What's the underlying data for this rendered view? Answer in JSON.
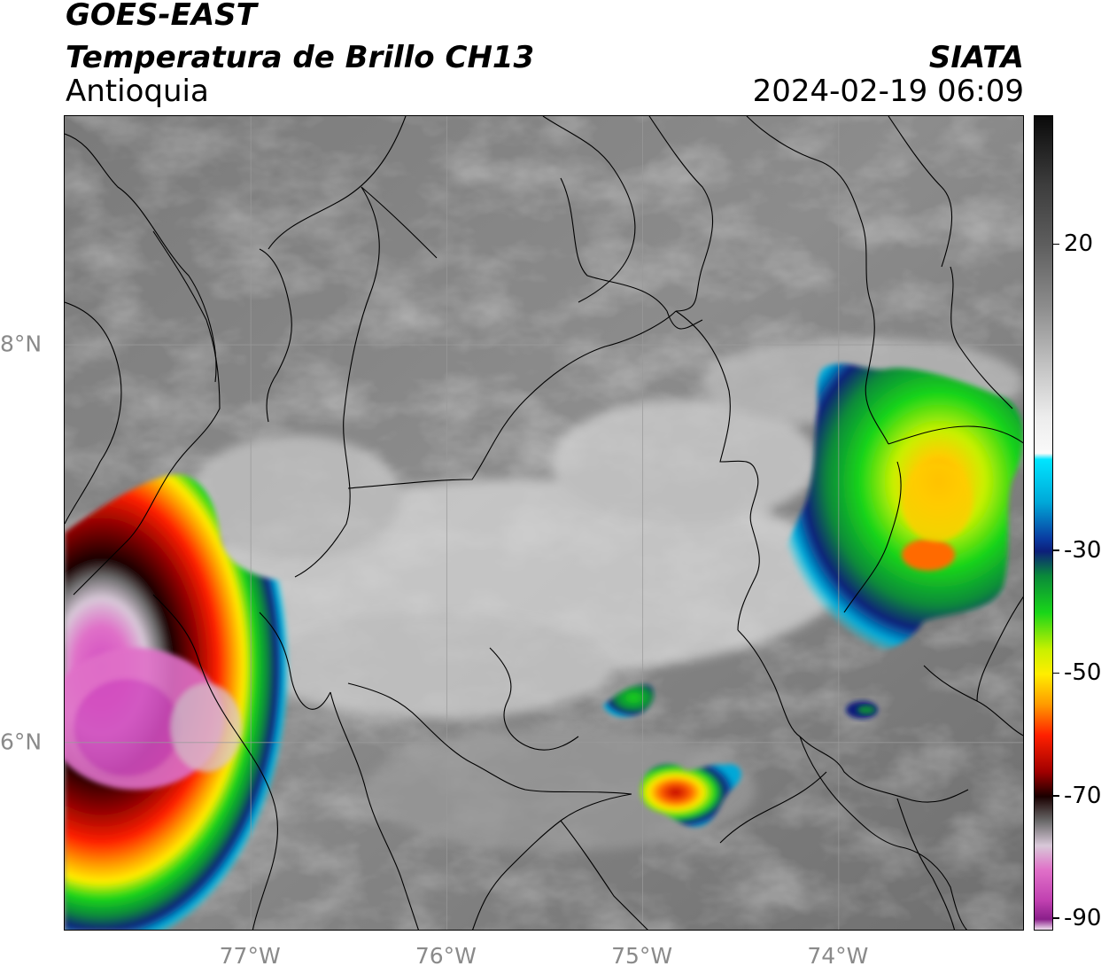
{
  "header": {
    "satellite": "GOES-EAST",
    "product": "Temperatura de Brillo CH13",
    "region": "Antioquia",
    "organization": "SIATA",
    "timestamp": "2024-02-19 06:09"
  },
  "map": {
    "extent": {
      "lon_min": -77.95,
      "lon_max": -73.05,
      "lat_min": 5.05,
      "lat_max": 9.15
    },
    "graticule": {
      "longitudes": [
        -77,
        -76,
        -75,
        -74
      ],
      "latitudes": [
        6,
        8
      ]
    },
    "lon_labels": [
      "77°W",
      "76°W",
      "75°W",
      "74°W"
    ],
    "lat_labels": [
      "6°N",
      "8°N"
    ],
    "cloud_features": [
      {
        "id": "southwest-convective-complex",
        "lon": -77.6,
        "lat": 6.1,
        "min_temp_c": -88
      },
      {
        "id": "east-convective-cluster",
        "lon": -73.5,
        "lat": 7.0,
        "min_temp_c": -55
      },
      {
        "id": "central-small-cell",
        "lon": -74.65,
        "lat": 5.75,
        "min_temp_c": -65
      },
      {
        "id": "central-north-cell",
        "lon": -74.95,
        "lat": 6.2,
        "min_temp_c": -40
      }
    ]
  },
  "colorbar": {
    "unit_label": "",
    "ticks": [
      "20",
      "-30",
      "-50",
      "-70",
      "-90"
    ],
    "tick_values": [
      20,
      -30,
      -50,
      -70,
      -90
    ],
    "range": [
      -92,
      41
    ],
    "stops": [
      {
        "value": 41,
        "color": "#0a0a0a"
      },
      {
        "value": 30,
        "color": "#3c3c3c"
      },
      {
        "value": 20,
        "color": "#5e5e5e"
      },
      {
        "value": 10,
        "color": "#8c8c8c"
      },
      {
        "value": 0,
        "color": "#c4c4c4"
      },
      {
        "value": -8,
        "color": "#ececec"
      },
      {
        "value": -14,
        "color": "#fafafa"
      },
      {
        "value": -15,
        "color": "#00e5ff"
      },
      {
        "value": -22,
        "color": "#00a8d8"
      },
      {
        "value": -28,
        "color": "#0a3aa0"
      },
      {
        "value": -30,
        "color": "#0c1f7a"
      },
      {
        "value": -34,
        "color": "#0a8a3a"
      },
      {
        "value": -40,
        "color": "#19d619"
      },
      {
        "value": -46,
        "color": "#c8f000"
      },
      {
        "value": -50,
        "color": "#ffee00"
      },
      {
        "value": -55,
        "color": "#ff9a00"
      },
      {
        "value": -60,
        "color": "#ff2000"
      },
      {
        "value": -66,
        "color": "#a00000"
      },
      {
        "value": -70,
        "color": "#1a0000"
      },
      {
        "value": -74,
        "color": "#6a6a6a"
      },
      {
        "value": -78,
        "color": "#d8c8d8"
      },
      {
        "value": -82,
        "color": "#e070c8"
      },
      {
        "value": -87,
        "color": "#c040b0"
      },
      {
        "value": -90,
        "color": "#8a1f8a"
      },
      {
        "value": -92,
        "color": "#ffffff"
      }
    ]
  }
}
